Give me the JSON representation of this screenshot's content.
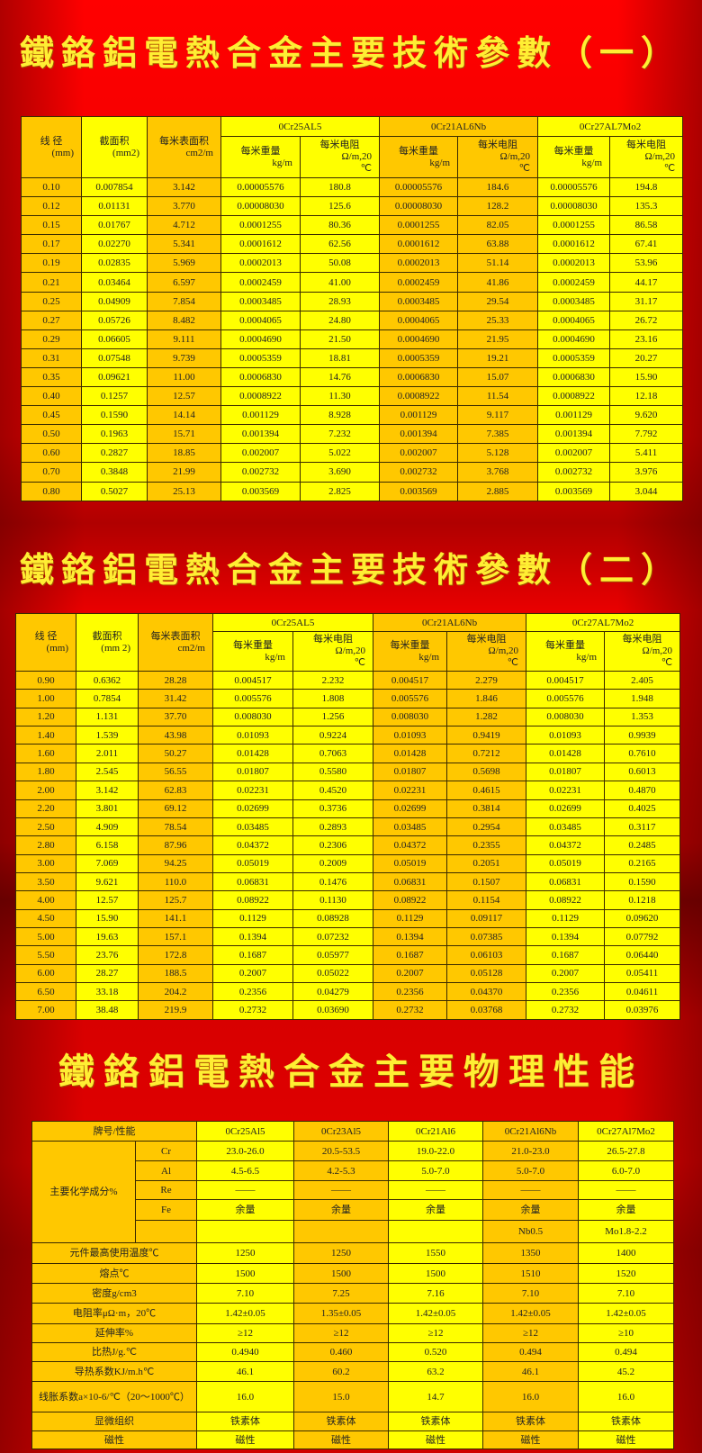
{
  "colors": {
    "background": "#e00000",
    "title": "#ffee33",
    "cell_yellow": "#ffff00",
    "cell_orange": "#ffc800"
  },
  "title1": "鐵鉻鋁電熱合金主要技術參數（一）",
  "title2": "鐵鉻鋁電熱合金主要技術參數（二）",
  "title3": "鐵鉻鋁電熱合金主要物理性能",
  "table1": {
    "headers": {
      "diameter": "线 径",
      "diameter_unit": "(mm)",
      "area": "截面积",
      "area_unit": "(mm2)",
      "surface": "每米表面积",
      "surface_unit": "cm2/m",
      "alloys": [
        "0Cr25AL5",
        "0Cr21AL6Nb",
        "0Cr27AL7Mo2"
      ],
      "weight": "每米重量",
      "weight_unit": "kg/m",
      "resist": "每米电阻",
      "resist_unit": "Ω/m,20",
      "resist_unit2": "℃"
    },
    "rows": [
      [
        "0.10",
        "0.007854",
        "3.142",
        "0.00005576",
        "180.8",
        "0.00005576",
        "184.6",
        "0.00005576",
        "194.8"
      ],
      [
        "0.12",
        "0.01131",
        "3.770",
        "0.00008030",
        "125.6",
        "0.00008030",
        "128.2",
        "0.00008030",
        "135.3"
      ],
      [
        "0.15",
        "0.01767",
        "4.712",
        "0.0001255",
        "80.36",
        "0.0001255",
        "82.05",
        "0.0001255",
        "86.58"
      ],
      [
        "0.17",
        "0.02270",
        "5.341",
        "0.0001612",
        "62.56",
        "0.0001612",
        "63.88",
        "0.0001612",
        "67.41"
      ],
      [
        "0.19",
        "0.02835",
        "5.969",
        "0.0002013",
        "50.08",
        "0.0002013",
        "51.14",
        "0.0002013",
        "53.96"
      ],
      [
        "0.21",
        "0.03464",
        "6.597",
        "0.0002459",
        "41.00",
        "0.0002459",
        "41.86",
        "0.0002459",
        "44.17"
      ],
      [
        "0.25",
        "0.04909",
        "7.854",
        "0.0003485",
        "28.93",
        "0.0003485",
        "29.54",
        "0.0003485",
        "31.17"
      ],
      [
        "0.27",
        "0.05726",
        "8.482",
        "0.0004065",
        "24.80",
        "0.0004065",
        "25.33",
        "0.0004065",
        "26.72"
      ],
      [
        "0.29",
        "0.06605",
        "9.111",
        "0.0004690",
        "21.50",
        "0.0004690",
        "21.95",
        "0.0004690",
        "23.16"
      ],
      [
        "0.31",
        "0.07548",
        "9.739",
        "0.0005359",
        "18.81",
        "0.0005359",
        "19.21",
        "0.0005359",
        "20.27"
      ],
      [
        "0.35",
        "0.09621",
        "11.00",
        "0.0006830",
        "14.76",
        "0.0006830",
        "15.07",
        "0.0006830",
        "15.90"
      ],
      [
        "0.40",
        "0.1257",
        "12.57",
        "0.0008922",
        "11.30",
        "0.0008922",
        "11.54",
        "0.0008922",
        "12.18"
      ],
      [
        "0.45",
        "0.1590",
        "14.14",
        "0.001129",
        "8.928",
        "0.001129",
        "9.117",
        "0.001129",
        "9.620"
      ],
      [
        "0.50",
        "0.1963",
        "15.71",
        "0.001394",
        "7.232",
        "0.001394",
        "7.385",
        "0.001394",
        "7.792"
      ],
      [
        "0.60",
        "0.2827",
        "18.85",
        "0.002007",
        "5.022",
        "0.002007",
        "5.128",
        "0.002007",
        "5.411"
      ],
      [
        "0.70",
        "0.3848",
        "21.99",
        "0.002732",
        "3.690",
        "0.002732",
        "3.768",
        "0.002732",
        "3.976"
      ],
      [
        "0.80",
        "0.5027",
        "25.13",
        "0.003569",
        "2.825",
        "0.003569",
        "2.885",
        "0.003569",
        "3.044"
      ]
    ]
  },
  "table2": {
    "headers": {
      "diameter": "线 径",
      "diameter_unit": "(mm)",
      "area": "截面积",
      "area_unit": "(mm 2)",
      "surface": "每米表面积",
      "surface_unit": "cm2/m",
      "alloys": [
        "0Cr25AL5",
        "0Cr21AL6Nb",
        "0Cr27AL7Mo2"
      ],
      "weight": "每米重量",
      "weight_unit": "kg/m",
      "resist": "每米电阻",
      "resist_unit": "Ω/m,20",
      "resist_unit2": "℃"
    },
    "rows": [
      [
        "0.90",
        "0.6362",
        "28.28",
        "0.004517",
        "2.232",
        "0.004517",
        "2.279",
        "0.004517",
        "2.405"
      ],
      [
        "1.00",
        "0.7854",
        "31.42",
        "0.005576",
        "1.808",
        "0.005576",
        "1.846",
        "0.005576",
        "1.948"
      ],
      [
        "1.20",
        "1.131",
        "37.70",
        "0.008030",
        "1.256",
        "0.008030",
        "1.282",
        "0.008030",
        "1.353"
      ],
      [
        "1.40",
        "1.539",
        "43.98",
        "0.01093",
        "0.9224",
        "0.01093",
        "0.9419",
        "0.01093",
        "0.9939"
      ],
      [
        "1.60",
        "2.011",
        "50.27",
        "0.01428",
        "0.7063",
        "0.01428",
        "0.7212",
        "0.01428",
        "0.7610"
      ],
      [
        "1.80",
        "2.545",
        "56.55",
        "0.01807",
        "0.5580",
        "0.01807",
        "0.5698",
        "0.01807",
        "0.6013"
      ],
      [
        "2.00",
        "3.142",
        "62.83",
        "0.02231",
        "0.4520",
        "0.02231",
        "0.4615",
        "0.02231",
        "0.4870"
      ],
      [
        "2.20",
        "3.801",
        "69.12",
        "0.02699",
        "0.3736",
        "0.02699",
        "0.3814",
        "0.02699",
        "0.4025"
      ],
      [
        "2.50",
        "4.909",
        "78.54",
        "0.03485",
        "0.2893",
        "0.03485",
        "0.2954",
        "0.03485",
        "0.3117"
      ],
      [
        "2.80",
        "6.158",
        "87.96",
        "0.04372",
        "0.2306",
        "0.04372",
        "0.2355",
        "0.04372",
        "0.2485"
      ],
      [
        "3.00",
        "7.069",
        "94.25",
        "0.05019",
        "0.2009",
        "0.05019",
        "0.2051",
        "0.05019",
        "0.2165"
      ],
      [
        "3.50",
        "9.621",
        "110.0",
        "0.06831",
        "0.1476",
        "0.06831",
        "0.1507",
        "0.06831",
        "0.1590"
      ],
      [
        "4.00",
        "12.57",
        "125.7",
        "0.08922",
        "0.1130",
        "0.08922",
        "0.1154",
        "0.08922",
        "0.1218"
      ],
      [
        "4.50",
        "15.90",
        "141.1",
        "0.1129",
        "0.08928",
        "0.1129",
        "0.09117",
        "0.1129",
        "0.09620"
      ],
      [
        "5.00",
        "19.63",
        "157.1",
        "0.1394",
        "0.07232",
        "0.1394",
        "0.07385",
        "0.1394",
        "0.07792"
      ],
      [
        "5.50",
        "23.76",
        "172.8",
        "0.1687",
        "0.05977",
        "0.1687",
        "0.06103",
        "0.1687",
        "0.06440"
      ],
      [
        "6.00",
        "28.27",
        "188.5",
        "0.2007",
        "0.05022",
        "0.2007",
        "0.05128",
        "0.2007",
        "0.05411"
      ],
      [
        "6.50",
        "33.18",
        "204.2",
        "0.2356",
        "0.04279",
        "0.2356",
        "0.04370",
        "0.2356",
        "0.04611"
      ],
      [
        "7.00",
        "38.48",
        "219.9",
        "0.2732",
        "0.03690",
        "0.2732",
        "0.03768",
        "0.2732",
        "0.03976"
      ]
    ]
  },
  "table3": {
    "corner": "牌号/性能",
    "grades": [
      "0Cr25Al5",
      "0Cr23Al5",
      "0Cr21Al6",
      "0Cr21Al6Nb",
      "0Cr27Al7Mo2"
    ],
    "composition_label": "主要化学成分%",
    "composition": [
      {
        "element": "Cr",
        "values": [
          "23.0-26.0",
          "20.5-53.5",
          "19.0-22.0",
          "21.0-23.0",
          "26.5-27.8"
        ]
      },
      {
        "element": "Al",
        "values": [
          "4.5-6.5",
          "4.2-5.3",
          "5.0-7.0",
          "5.0-7.0",
          "6.0-7.0"
        ]
      },
      {
        "element": "Re",
        "values": [
          "——",
          "——",
          "——",
          "——",
          "——"
        ]
      },
      {
        "element": "Fe",
        "values": [
          "余量",
          "余量",
          "余量",
          "余量",
          "余量"
        ]
      },
      {
        "element": "",
        "values": [
          "",
          "",
          "",
          "Nb0.5",
          "Mo1.8-2.2"
        ]
      }
    ],
    "properties": [
      {
        "label": "元件最高使用温度℃",
        "values": [
          "1250",
          "1250",
          "1550",
          "1350",
          "1400"
        ]
      },
      {
        "label": "熔点℃",
        "values": [
          "1500",
          "1500",
          "1500",
          "1510",
          "1520"
        ]
      },
      {
        "label": "密度g/cm3",
        "values": [
          "7.10",
          "7.25",
          "7.16",
          "7.10",
          "7.10"
        ]
      },
      {
        "label": "电阻率μΩ·m，20℃",
        "values": [
          "1.42±0.05",
          "1.35±0.05",
          "1.42±0.05",
          "1.42±0.05",
          "1.42±0.05"
        ]
      },
      {
        "label": "延伸率%",
        "values": [
          "≥12",
          "≥12",
          "≥12",
          "≥12",
          "≥10"
        ]
      },
      {
        "label": "比热J/g.℃",
        "values": [
          "0.4940",
          "0.460",
          "0.520",
          "0.494",
          "0.494"
        ]
      },
      {
        "label": "导热系数KJ/m.h℃",
        "values": [
          "46.1",
          "60.2",
          "63.2",
          "46.1",
          "45.2"
        ]
      },
      {
        "label": "线胀系数a×10-6/℃（20～1000℃）",
        "values": [
          "16.0",
          "15.0",
          "14.7",
          "16.0",
          "16.0"
        ]
      },
      {
        "label": "显微组织",
        "values": [
          "铁素体",
          "铁素体",
          "铁素体",
          "铁素体",
          "铁素体"
        ]
      },
      {
        "label": "磁性",
        "values": [
          "磁性",
          "磁性",
          "磁性",
          "磁性",
          "磁性"
        ]
      }
    ]
  }
}
